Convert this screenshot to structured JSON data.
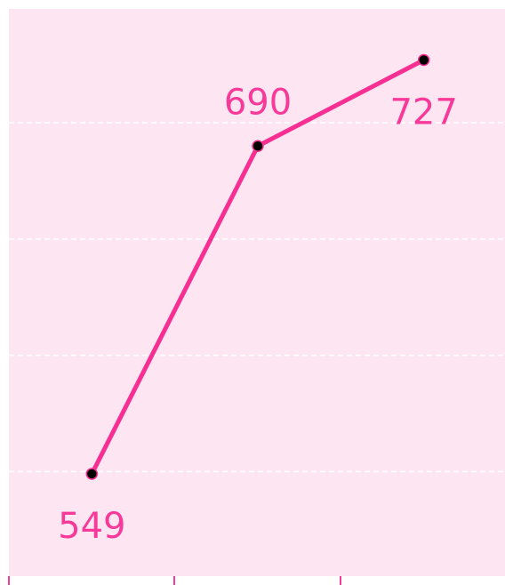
{
  "chart_data": {
    "type": "line",
    "categories": [
      null,
      null,
      null
    ],
    "series": [
      {
        "color": "#f72f93",
        "values": [
          549,
          690,
          727
        ]
      }
    ],
    "ylim": [
      505,
      749
    ],
    "yticks": [
      550,
      600,
      650,
      700
    ],
    "grid": true
  }
}
